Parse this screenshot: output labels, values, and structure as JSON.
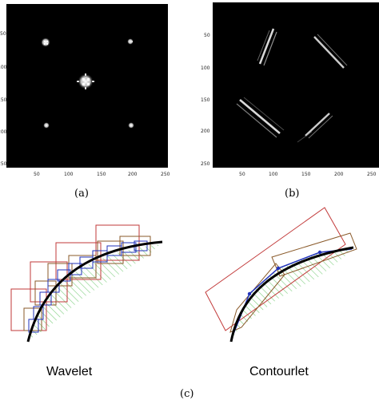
{
  "panel_a": {
    "caption": "(a)",
    "x_ticks": [
      "50",
      "100",
      "150",
      "200",
      "250"
    ],
    "y_ticks": [
      "50",
      "100",
      "150",
      "200",
      "250"
    ]
  },
  "panel_b": {
    "caption": "(b)",
    "x_ticks": [
      "50",
      "100",
      "150",
      "200",
      "250"
    ],
    "y_ticks": [
      "50",
      "100",
      "150",
      "200",
      "250"
    ]
  },
  "panel_c": {
    "caption": "(c)",
    "left_label": "Wavelet",
    "right_label": "Contourlet"
  },
  "colors": {
    "image_background": "#000000",
    "curve": "#000000",
    "box_red": "#c23a3a",
    "box_brown": "#8a5a2a",
    "box_blue": "#2233bb",
    "hatch_green": "#7fcf7f"
  }
}
